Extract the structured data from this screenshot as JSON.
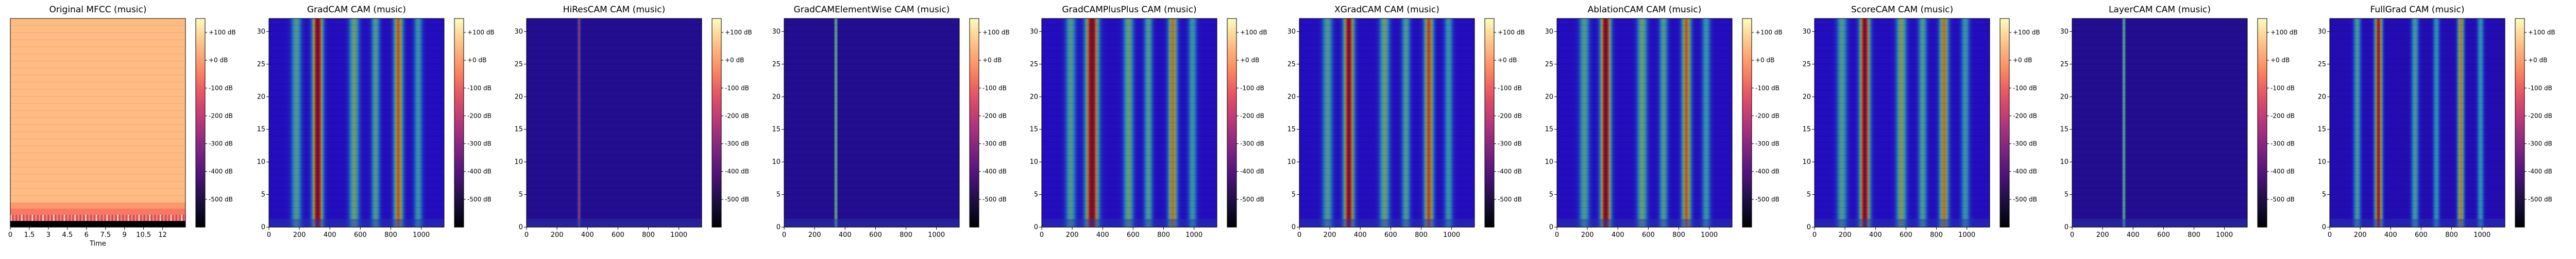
{
  "chart_data": [
    {
      "type": "heatmap",
      "title": "Original MFCC (music)",
      "xlabel": "Time",
      "ylabel": "",
      "x_ticks": [
        "0",
        "1.5",
        "3",
        "4.5",
        "6",
        "7.5",
        "9",
        "10.5",
        "12"
      ],
      "y_ticks": [],
      "colormap": "magma",
      "colorbar": {
        "ticks": [
          "+100 dB",
          "+0 dB",
          "-100 dB",
          "-200 dB",
          "-300 dB",
          "-400 dB",
          "-500 dB"
        ],
        "range_db": [
          -600,
          150
        ]
      },
      "description_values": {
        "main_level_db": 50,
        "bottom_rows": [
          {
            "row": 0,
            "level_db": -600
          },
          {
            "row": 1,
            "level_db": -150
          },
          {
            "row": 2,
            "level_db": -60
          },
          {
            "row": 3,
            "level_db": -10
          }
        ]
      }
    },
    {
      "type": "heatmap",
      "title": "GradCAM CAM (music)",
      "xlabel": "",
      "x_ticks": [
        "0",
        "200",
        "400",
        "600",
        "800",
        "1000"
      ],
      "y_ticks": [
        "0",
        "5",
        "10",
        "15",
        "20",
        "25",
        "30"
      ],
      "x_range": [
        0,
        1150
      ],
      "y_range": [
        0,
        32
      ],
      "colormap": "jet",
      "colorbar": {
        "ticks": [
          "+100 dB",
          "+0 dB",
          "-100 dB",
          "-200 dB",
          "-300 dB",
          "-400 dB",
          "-500 dB"
        ],
        "range_db": [
          -600,
          150
        ]
      },
      "base_level": 0.12,
      "bands": [
        {
          "x": 320,
          "width": 60,
          "intensity": 0.95
        },
        {
          "x": 850,
          "width": 55,
          "intensity": 0.65
        },
        {
          "x": 560,
          "width": 60,
          "intensity": 0.4
        },
        {
          "x": 180,
          "width": 60,
          "intensity": 0.35
        },
        {
          "x": 700,
          "width": 50,
          "intensity": 0.35
        },
        {
          "x": 980,
          "width": 50,
          "intensity": 0.3
        }
      ]
    },
    {
      "type": "heatmap",
      "title": "HiResCAM CAM (music)",
      "xlabel": "",
      "x_ticks": [
        "0",
        "200",
        "400",
        "600",
        "800",
        "1000"
      ],
      "y_ticks": [
        "0",
        "5",
        "10",
        "15",
        "20",
        "25",
        "30"
      ],
      "x_range": [
        0,
        1150
      ],
      "y_range": [
        0,
        32
      ],
      "colormap": "jet",
      "colorbar": {
        "ticks": [
          "+100 dB",
          "+0 dB",
          "-100 dB",
          "-200 dB",
          "-300 dB",
          "-400 dB",
          "-500 dB"
        ],
        "range_db": [
          -600,
          150
        ]
      },
      "base_level": 0.04,
      "bands": [
        {
          "x": 345,
          "width": 14,
          "intensity": 0.75
        }
      ]
    },
    {
      "type": "heatmap",
      "title": "GradCAMElementWise CAM (music)",
      "xlabel": "",
      "x_ticks": [
        "0",
        "200",
        "400",
        "600",
        "800",
        "1000"
      ],
      "y_ticks": [
        "0",
        "5",
        "10",
        "15",
        "20",
        "25",
        "30"
      ],
      "x_range": [
        0,
        1150
      ],
      "y_range": [
        0,
        32
      ],
      "colormap": "jet",
      "colorbar": {
        "ticks": [
          "+100 dB",
          "+0 dB",
          "-100 dB",
          "-200 dB",
          "-300 dB",
          "-400 dB",
          "-500 dB"
        ],
        "range_db": [
          -600,
          150
        ]
      },
      "base_level": 0.04,
      "bands": [
        {
          "x": 340,
          "width": 14,
          "intensity": 0.7
        }
      ]
    },
    {
      "type": "heatmap",
      "title": "GradCAMPlusPlus CAM (music)",
      "xlabel": "",
      "x_ticks": [
        "0",
        "200",
        "400",
        "600",
        "800",
        "1000"
      ],
      "y_ticks": [
        "0",
        "5",
        "10",
        "15",
        "20",
        "25",
        "30"
      ],
      "x_range": [
        0,
        1150
      ],
      "y_range": [
        0,
        32
      ],
      "colormap": "jet",
      "colorbar": {
        "ticks": [
          "+100 dB",
          "+0 dB",
          "-100 dB",
          "-200 dB",
          "-300 dB",
          "-400 dB",
          "-500 dB"
        ],
        "range_db": [
          -600,
          150
        ]
      },
      "base_level": 0.12,
      "bands": [
        {
          "x": 330,
          "width": 75,
          "intensity": 0.95
        },
        {
          "x": 860,
          "width": 55,
          "intensity": 0.6
        },
        {
          "x": 570,
          "width": 60,
          "intensity": 0.4
        },
        {
          "x": 190,
          "width": 60,
          "intensity": 0.35
        },
        {
          "x": 700,
          "width": 50,
          "intensity": 0.35
        },
        {
          "x": 990,
          "width": 50,
          "intensity": 0.3
        }
      ]
    },
    {
      "type": "heatmap",
      "title": "XGradCAM CAM (music)",
      "xlabel": "",
      "x_ticks": [
        "0",
        "200",
        "400",
        "600",
        "800",
        "1000"
      ],
      "y_ticks": [
        "0",
        "5",
        "10",
        "15",
        "20",
        "25",
        "30"
      ],
      "x_range": [
        0,
        1150
      ],
      "y_range": [
        0,
        32
      ],
      "colormap": "jet",
      "colorbar": {
        "ticks": [
          "+100 dB",
          "+0 dB",
          "-100 dB",
          "-200 dB",
          "-300 dB",
          "-400 dB",
          "-500 dB"
        ],
        "range_db": [
          -600,
          150
        ]
      },
      "base_level": 0.12,
      "bands": [
        {
          "x": 325,
          "width": 60,
          "intensity": 0.9
        },
        {
          "x": 850,
          "width": 55,
          "intensity": 0.7
        },
        {
          "x": 560,
          "width": 60,
          "intensity": 0.4
        },
        {
          "x": 185,
          "width": 60,
          "intensity": 0.35
        },
        {
          "x": 700,
          "width": 50,
          "intensity": 0.35
        },
        {
          "x": 980,
          "width": 50,
          "intensity": 0.3
        }
      ]
    },
    {
      "type": "heatmap",
      "title": "AblationCAM CAM (music)",
      "xlabel": "",
      "x_ticks": [
        "0",
        "200",
        "400",
        "600",
        "800",
        "1000"
      ],
      "y_ticks": [
        "0",
        "5",
        "10",
        "15",
        "20",
        "25",
        "30"
      ],
      "x_range": [
        0,
        1150
      ],
      "y_range": [
        0,
        32
      ],
      "colormap": "jet",
      "colorbar": {
        "ticks": [
          "+100 dB",
          "+0 dB",
          "-100 dB",
          "-200 dB",
          "-300 dB",
          "-400 dB",
          "-500 dB"
        ],
        "range_db": [
          -600,
          150
        ]
      },
      "base_level": 0.12,
      "bands": [
        {
          "x": 320,
          "width": 60,
          "intensity": 0.95
        },
        {
          "x": 850,
          "width": 55,
          "intensity": 0.65
        },
        {
          "x": 560,
          "width": 60,
          "intensity": 0.4
        },
        {
          "x": 180,
          "width": 60,
          "intensity": 0.35
        },
        {
          "x": 700,
          "width": 50,
          "intensity": 0.35
        },
        {
          "x": 980,
          "width": 50,
          "intensity": 0.3
        }
      ]
    },
    {
      "type": "heatmap",
      "title": "ScoreCAM CAM (music)",
      "xlabel": "",
      "x_ticks": [
        "0",
        "200",
        "400",
        "600",
        "800",
        "1000"
      ],
      "y_ticks": [
        "0",
        "5",
        "10",
        "15",
        "20",
        "25",
        "30"
      ],
      "x_range": [
        0,
        1150
      ],
      "y_range": [
        0,
        32
      ],
      "colormap": "jet",
      "colorbar": {
        "ticks": [
          "+100 dB",
          "+0 dB",
          "-100 dB",
          "-200 dB",
          "-300 dB",
          "-400 dB",
          "-500 dB"
        ],
        "range_db": [
          -600,
          150
        ]
      },
      "base_level": 0.12,
      "bands": [
        {
          "x": 330,
          "width": 60,
          "intensity": 0.9
        },
        {
          "x": 850,
          "width": 55,
          "intensity": 0.6
        },
        {
          "x": 570,
          "width": 60,
          "intensity": 0.45
        },
        {
          "x": 180,
          "width": 60,
          "intensity": 0.35
        },
        {
          "x": 710,
          "width": 50,
          "intensity": 0.35
        },
        {
          "x": 990,
          "width": 50,
          "intensity": 0.3
        }
      ]
    },
    {
      "type": "heatmap",
      "title": "LayerCAM CAM (music)",
      "xlabel": "",
      "x_ticks": [
        "0",
        "200",
        "400",
        "600",
        "800",
        "1000"
      ],
      "y_ticks": [
        "0",
        "5",
        "10",
        "15",
        "20",
        "25",
        "30"
      ],
      "x_range": [
        0,
        1150
      ],
      "y_range": [
        0,
        32
      ],
      "colormap": "jet",
      "colorbar": {
        "ticks": [
          "+100 dB",
          "+0 dB",
          "-100 dB",
          "-200 dB",
          "-300 dB",
          "-400 dB",
          "-500 dB"
        ],
        "range_db": [
          -600,
          150
        ]
      },
      "base_level": 0.04,
      "bands": [
        {
          "x": 340,
          "width": 14,
          "intensity": 0.65
        }
      ]
    },
    {
      "type": "heatmap",
      "title": "FullGrad CAM (music)",
      "xlabel": "",
      "x_ticks": [
        "0",
        "200",
        "400",
        "600",
        "800",
        "1000"
      ],
      "y_ticks": [
        "0",
        "5",
        "10",
        "15",
        "20",
        "25",
        "30"
      ],
      "x_range": [
        0,
        1150
      ],
      "y_range": [
        0,
        32
      ],
      "colormap": "jet",
      "colorbar": {
        "ticks": [
          "+100 dB",
          "+0 dB",
          "-100 dB",
          "-200 dB",
          "-300 dB",
          "-400 dB",
          "-500 dB"
        ],
        "range_db": [
          -600,
          150
        ]
      },
      "base_level": 0.1,
      "bands": [
        {
          "x": 320,
          "width": 45,
          "intensity": 0.85
        },
        {
          "x": 860,
          "width": 40,
          "intensity": 0.6
        },
        {
          "x": 180,
          "width": 45,
          "intensity": 0.35
        },
        {
          "x": 560,
          "width": 45,
          "intensity": 0.35
        },
        {
          "x": 700,
          "width": 40,
          "intensity": 0.3
        },
        {
          "x": 990,
          "width": 40,
          "intensity": 0.3
        }
      ]
    }
  ]
}
